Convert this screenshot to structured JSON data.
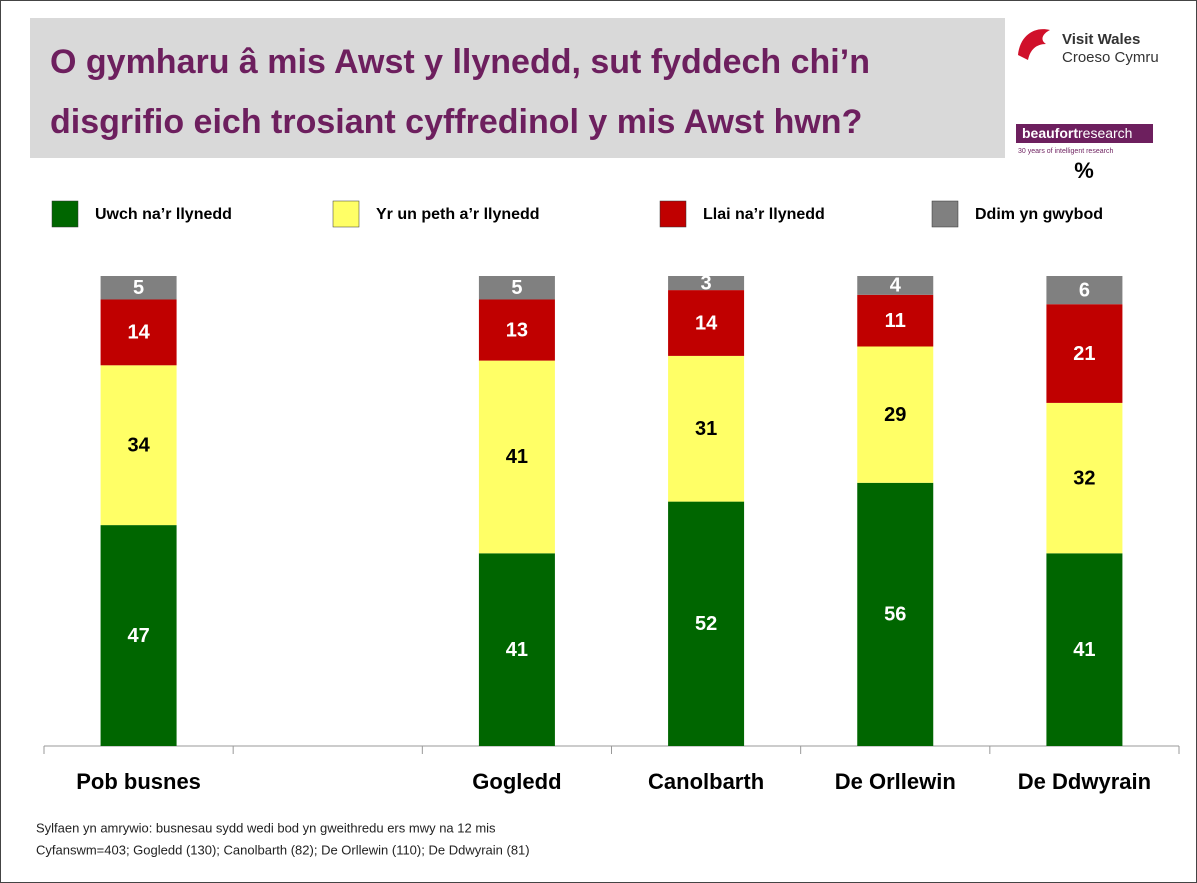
{
  "chart_data": {
    "type": "stacked_bar",
    "title": [
      "O gymharu â mis Awst y llynedd, sut fyddech chi’n",
      "disgrifio eich trosiant cyffredinol y mis Awst hwn?"
    ],
    "unit": "%",
    "categories": [
      "Pob busnes",
      null,
      "Gogledd",
      "Canolbarth",
      "De Orllewin",
      "De Ddwyrain"
    ],
    "series": [
      {
        "name": "Uwch na’r llynedd",
        "color": "#006600",
        "values": [
          47,
          null,
          41,
          52,
          56,
          41
        ]
      },
      {
        "name": "Yr un peth a’r llynedd",
        "color": "#ffff66",
        "values": [
          34,
          null,
          41,
          31,
          29,
          32
        ]
      },
      {
        "name": "Llai na’r llynedd",
        "color": "#c00000",
        "values": [
          14,
          null,
          13,
          14,
          11,
          21
        ]
      },
      {
        "name": "Ddim yn gwybod",
        "color": "#808080",
        "values": [
          5,
          null,
          5,
          3,
          4,
          6
        ]
      }
    ],
    "notes": [
      "Sylfaen yn amrywio: busnesau sydd wedi bod yn gweithredu ers mwy na 12 mis",
      "Cyfanswm=403; Gogledd (130); Canolbarth (82); De Orllewin (110); De Ddwyrain (81)"
    ]
  },
  "logo": {
    "line1": "Visit Wales",
    "line2": "Croeso Cymru",
    "brand_bold": "beaufort",
    "brand_light": "research",
    "tagline": "30 years of intelligent research"
  }
}
